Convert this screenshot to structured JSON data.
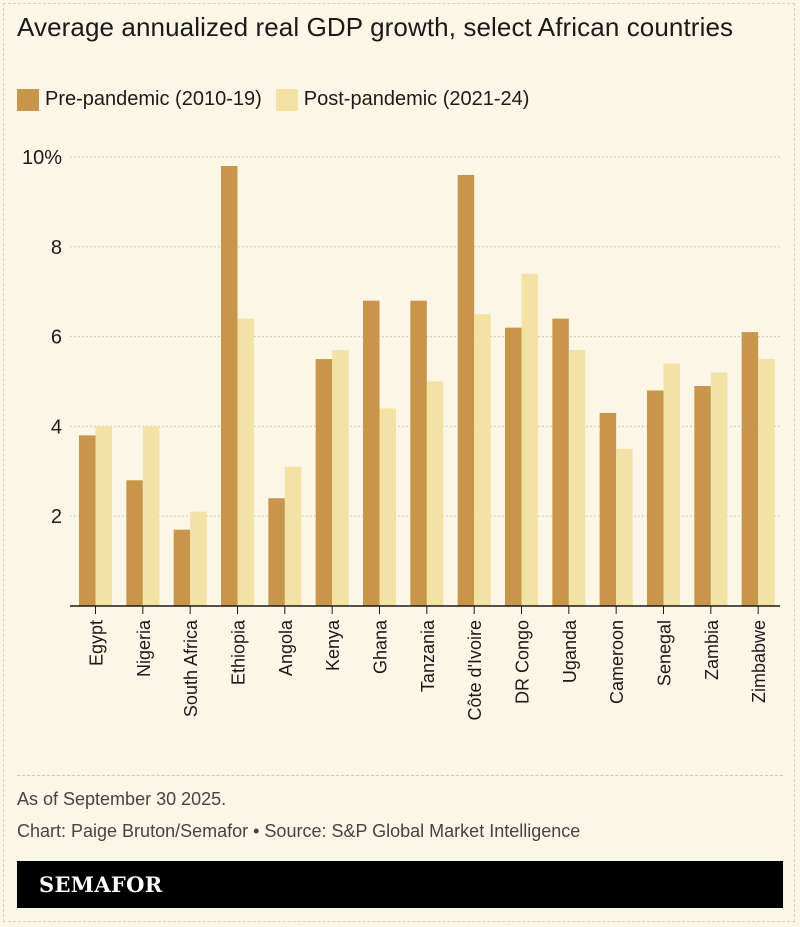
{
  "title": "Average annualized real GDP growth, select African countries",
  "legend": [
    {
      "label": "Pre-pandemic (2010-19)",
      "color": "#c8964a"
    },
    {
      "label": "Post-pandemic (2021-24)",
      "color": "#f2e2a4"
    }
  ],
  "note": "As of September 30 2025.",
  "credit": "Chart: Paige Bruton/Semafor • Source: S&P Global Market Intelligence",
  "brand": "SEMAFOR",
  "chart_data": {
    "type": "bar",
    "categories": [
      "Egypt",
      "Nigeria",
      "South Africa",
      "Ethiopia",
      "Angola",
      "Kenya",
      "Ghana",
      "Tanzania",
      "Côte d'Ivoire",
      "DR Congo",
      "Uganda",
      "Cameroon",
      "Senegal",
      "Zambia",
      "Zimbabwe"
    ],
    "series": [
      {
        "name": "Pre-pandemic (2010-19)",
        "color": "#c8964a",
        "values": [
          3.8,
          2.8,
          1.7,
          9.8,
          2.4,
          5.5,
          6.8,
          6.8,
          9.6,
          6.2,
          6.4,
          4.3,
          4.8,
          4.9,
          6.1
        ]
      },
      {
        "name": "Post-pandemic (2021-24)",
        "color": "#f2e2a4",
        "values": [
          4.0,
          4.0,
          2.1,
          6.4,
          3.1,
          5.7,
          4.4,
          5.0,
          6.5,
          7.4,
          5.7,
          3.5,
          5.4,
          5.2,
          5.5
        ]
      }
    ],
    "ylim": [
      0,
      10
    ],
    "yticks": [
      2,
      4,
      6,
      8,
      10
    ],
    "ytick_labels": [
      "2",
      "4",
      "6",
      "8",
      "10%"
    ],
    "grid": true,
    "legend_position": "top-left"
  }
}
